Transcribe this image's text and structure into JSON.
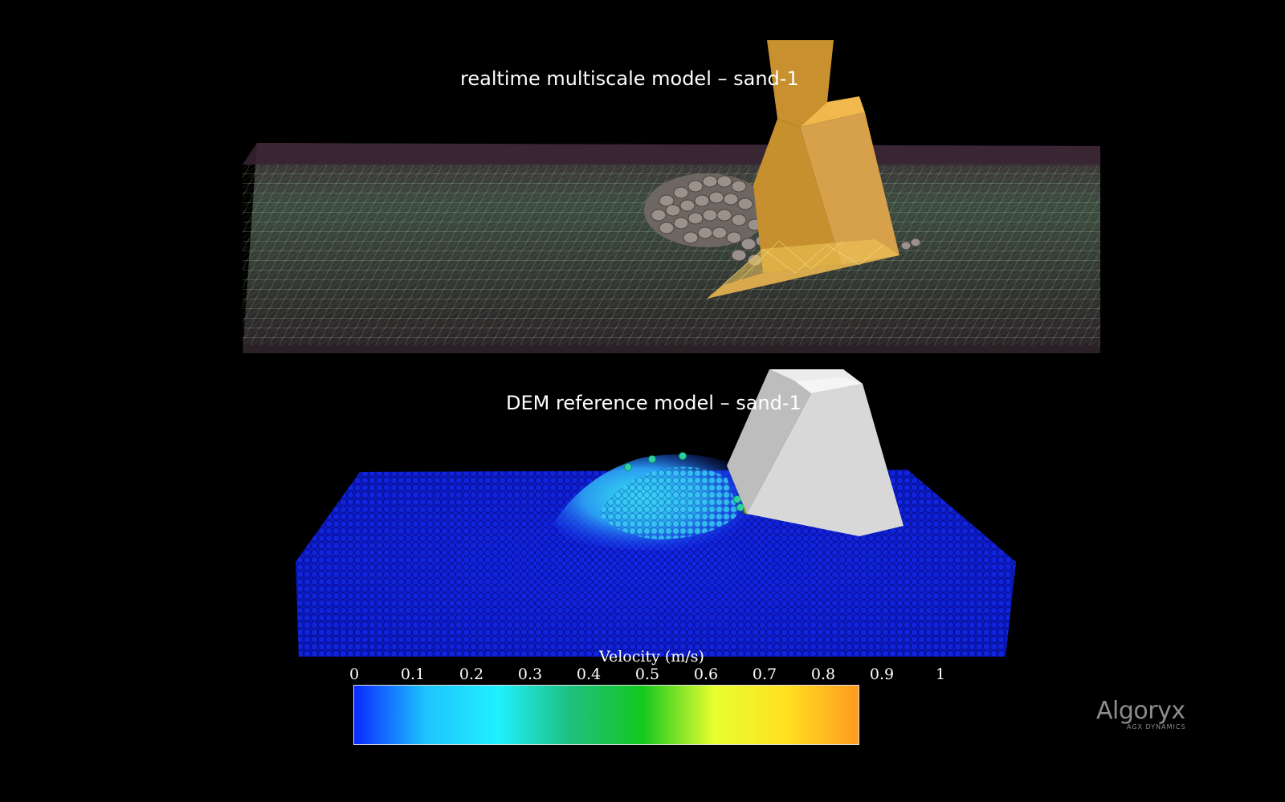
{
  "panels": {
    "top_title": "realtime multiscale model – sand-1",
    "bottom_title": "DEM reference model – sand-1"
  },
  "colorbar": {
    "title": "Velocity (m/s)",
    "ticks": [
      "0",
      "0.1",
      "0.2",
      "0.3",
      "0.4",
      "0.5",
      "0.6",
      "0.7",
      "0.8",
      "0.9",
      "1"
    ],
    "range": [
      0,
      1
    ],
    "colors": [
      "#0a2aff",
      "#1ec4ff",
      "#20f0ff",
      "#1ec080",
      "#14c81e",
      "#e8ff30",
      "#ffe020",
      "#ff9a20"
    ]
  },
  "logo": {
    "name": "Algoryx",
    "subtitle": "AGX DYNAMICS"
  }
}
